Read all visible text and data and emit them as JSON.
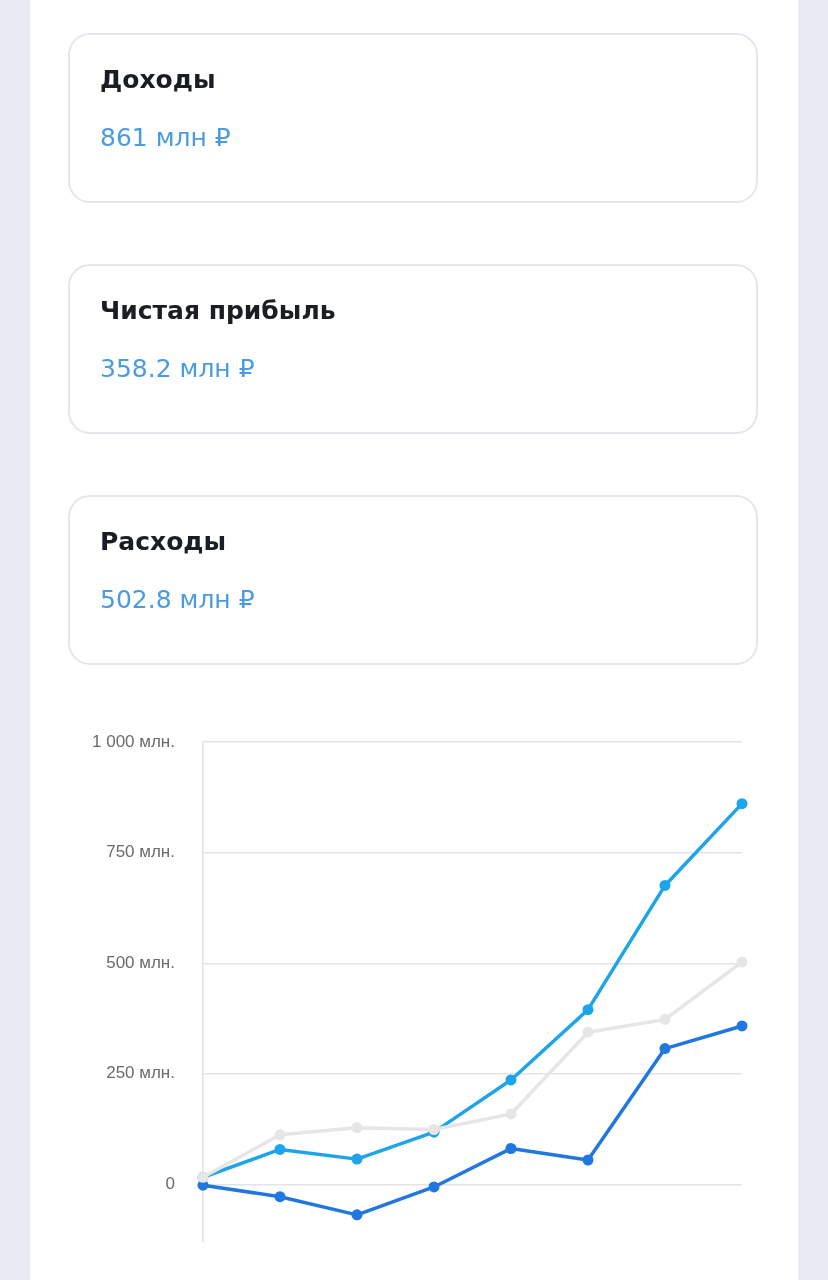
{
  "chart_data": [
    {
      "type": "other",
      "title": "Доходы",
      "subtitle": "861 млн ₽"
    },
    {
      "type": "other",
      "title": "Чистая прибыль",
      "subtitle": "358.2 млн ₽"
    },
    {
      "type": "other",
      "title": "Расходы",
      "subtitle": "502.8 млн ₽"
    },
    {
      "type": "line",
      "categories": [
        null,
        null,
        null,
        null,
        null,
        null,
        null,
        null
      ],
      "ylim": [
        -130,
        1000
      ],
      "yticks": [
        {
          "value": 0,
          "label": "0"
        },
        {
          "value": 250,
          "label": "250 млн."
        },
        {
          "value": 500,
          "label": "500 млн."
        },
        {
          "value": 750,
          "label": "750 млн."
        },
        {
          "value": 1000,
          "label": "1 000 млн."
        }
      ],
      "grid": "y",
      "tick_labels": "y",
      "marker": "circle",
      "legend": false,
      "series": [
        {
          "color": "#e6e6e6",
          "values": [
            16,
            112,
            128,
            124,
            159,
            344,
            373,
            502.8
          ]
        },
        {
          "color": "#2177e0",
          "values": [
            -2,
            -28,
            -69,
            -6,
            81,
            55,
            307,
            358.2
          ]
        },
        {
          "color": "#1ea4ea",
          "values": [
            16,
            79,
            57,
            118,
            236,
            395,
            676,
            861
          ]
        }
      ]
    }
  ]
}
